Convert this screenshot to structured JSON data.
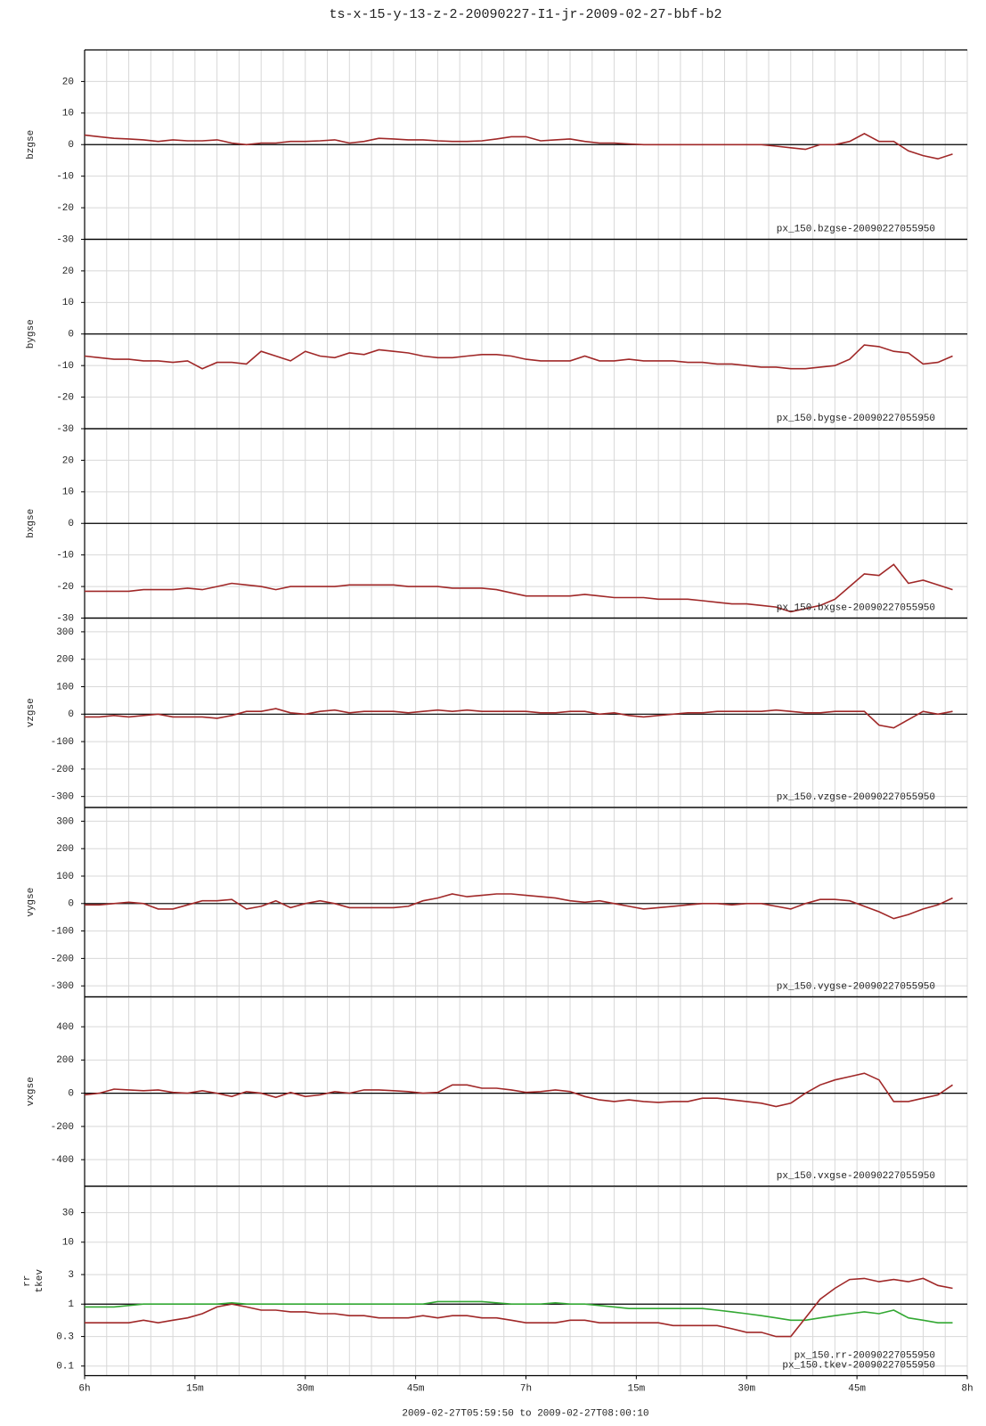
{
  "title": "ts-x-15-y-13-z-2-20090227-I1-jr-2009-02-27-bbf-b2",
  "x_grid": [
    0,
    3,
    6,
    9,
    12,
    15,
    18,
    21,
    24,
    27,
    30,
    33,
    36,
    39,
    42,
    45,
    48,
    51,
    54,
    57,
    60,
    63,
    66,
    69,
    72,
    75,
    78,
    81,
    84,
    87,
    90,
    93,
    96,
    99,
    102,
    105,
    108,
    111,
    114,
    117,
    120
  ],
  "chart_data": [
    {
      "type": "line",
      "ylabel": "bzgse",
      "xlim": [
        0,
        120
      ],
      "ylim": [
        -30,
        30
      ],
      "yticks": [
        -30,
        -20,
        -10,
        0,
        10,
        20
      ],
      "grid": true,
      "reference_line": 0,
      "x": [
        0,
        2,
        4,
        6,
        8,
        10,
        12,
        14,
        16,
        18,
        20,
        22,
        24,
        26,
        28,
        30,
        32,
        34,
        36,
        38,
        40,
        42,
        44,
        46,
        48,
        50,
        52,
        54,
        56,
        58,
        60,
        62,
        64,
        66,
        68,
        70,
        72,
        74,
        76,
        78,
        80,
        82,
        84,
        86,
        88,
        90,
        92,
        94,
        96,
        98,
        100,
        102,
        104,
        106,
        108,
        110,
        112,
        114,
        116,
        118
      ],
      "series": [
        {
          "name": "px_150.bzgse-20090227055950",
          "color": "#a02828",
          "values": [
            3,
            2.5,
            2,
            1.8,
            1.5,
            1,
            1.5,
            1.2,
            1.2,
            1.5,
            0.5,
            0,
            0.5,
            0.5,
            1,
            1,
            1.2,
            1.5,
            0.5,
            1,
            2,
            1.8,
            1.5,
            1.5,
            1.2,
            1,
            1,
            1.2,
            1.8,
            2.5,
            2.5,
            1.2,
            1.5,
            1.8,
            1,
            0.5,
            0.5,
            0.2,
            0,
            0,
            0,
            0,
            0,
            0,
            0,
            0,
            0,
            -0.5,
            -1,
            -1.5,
            0,
            0,
            1,
            3.5,
            1,
            1,
            -2,
            -3.5,
            -4.5,
            -3
          ]
        }
      ]
    },
    {
      "type": "line",
      "ylabel": "bygse",
      "xlim": [
        0,
        120
      ],
      "ylim": [
        -30,
        30
      ],
      "yticks": [
        -30,
        -20,
        -10,
        0,
        10,
        20
      ],
      "grid": true,
      "reference_line": 0,
      "x": [
        0,
        2,
        4,
        6,
        8,
        10,
        12,
        14,
        16,
        18,
        20,
        22,
        24,
        26,
        28,
        30,
        32,
        34,
        36,
        38,
        40,
        42,
        44,
        46,
        48,
        50,
        52,
        54,
        56,
        58,
        60,
        62,
        64,
        66,
        68,
        70,
        72,
        74,
        76,
        78,
        80,
        82,
        84,
        86,
        88,
        90,
        92,
        94,
        96,
        98,
        100,
        102,
        104,
        106,
        108,
        110,
        112,
        114,
        116,
        118
      ],
      "series": [
        {
          "name": "px_150.bygse-20090227055950",
          "color": "#a02828",
          "values": [
            -7,
            -7.5,
            -8,
            -8,
            -8.5,
            -8.5,
            -9,
            -8.5,
            -11,
            -9,
            -9,
            -9.5,
            -5.5,
            -7,
            -8.5,
            -5.5,
            -7,
            -7.5,
            -6,
            -6.5,
            -5,
            -5.5,
            -6,
            -7,
            -7.5,
            -7.5,
            -7,
            -6.5,
            -6.5,
            -7,
            -8,
            -8.5,
            -8.5,
            -8.5,
            -7,
            -8.5,
            -8.5,
            -8,
            -8.5,
            -8.5,
            -8.5,
            -9,
            -9,
            -9.5,
            -9.5,
            -10,
            -10.5,
            -10.5,
            -11,
            -11,
            -10.5,
            -10,
            -8,
            -3.5,
            -4,
            -5.5,
            -6,
            -9.5,
            -9,
            -7
          ]
        }
      ]
    },
    {
      "type": "line",
      "ylabel": "bxgse",
      "xlim": [
        0,
        120
      ],
      "ylim": [
        -30,
        30
      ],
      "yticks": [
        -30,
        -20,
        -10,
        0,
        10,
        20
      ],
      "grid": true,
      "reference_line": 0,
      "x": [
        0,
        2,
        4,
        6,
        8,
        10,
        12,
        14,
        16,
        18,
        20,
        22,
        24,
        26,
        28,
        30,
        32,
        34,
        36,
        38,
        40,
        42,
        44,
        46,
        48,
        50,
        52,
        54,
        56,
        58,
        60,
        62,
        64,
        66,
        68,
        70,
        72,
        74,
        76,
        78,
        80,
        82,
        84,
        86,
        88,
        90,
        92,
        94,
        96,
        98,
        100,
        102,
        104,
        106,
        108,
        110,
        112,
        114,
        116,
        118
      ],
      "series": [
        {
          "name": "px_150.bxgse-20090227055950",
          "color": "#a02828",
          "values": [
            -21.5,
            -21.5,
            -21.5,
            -21.5,
            -21,
            -21,
            -21,
            -20.5,
            -21,
            -20,
            -19,
            -19.5,
            -20,
            -21,
            -20,
            -20,
            -20,
            -20,
            -19.5,
            -19.5,
            -19.5,
            -19.5,
            -20,
            -20,
            -20,
            -20.5,
            -20.5,
            -20.5,
            -21,
            -22,
            -23,
            -23,
            -23,
            -23,
            -22.5,
            -23,
            -23.5,
            -23.5,
            -23.5,
            -24,
            -24,
            -24,
            -24.5,
            -25,
            -25.5,
            -25.5,
            -26,
            -26.5,
            -28,
            -27,
            -26,
            -24,
            -20,
            -16,
            -16.5,
            -13,
            -19,
            -18,
            -19.5,
            -21
          ]
        }
      ]
    },
    {
      "type": "line",
      "ylabel": "vzgse",
      "xlim": [
        0,
        120
      ],
      "ylim": [
        -340,
        350
      ],
      "yticks": [
        -300,
        -200,
        -100,
        0,
        100,
        200,
        300
      ],
      "grid": true,
      "reference_line": 0,
      "x": [
        0,
        2,
        4,
        6,
        8,
        10,
        12,
        14,
        16,
        18,
        20,
        22,
        24,
        26,
        28,
        30,
        32,
        34,
        36,
        38,
        40,
        42,
        44,
        46,
        48,
        50,
        52,
        54,
        56,
        58,
        60,
        62,
        64,
        66,
        68,
        70,
        72,
        74,
        76,
        78,
        80,
        82,
        84,
        86,
        88,
        90,
        92,
        94,
        96,
        98,
        100,
        102,
        104,
        106,
        108,
        110,
        112,
        114,
        116,
        118
      ],
      "series": [
        {
          "name": "px_150.vzgse-20090227055950",
          "color": "#a02828",
          "values": [
            -10,
            -10,
            -5,
            -10,
            -5,
            0,
            -10,
            -10,
            -10,
            -15,
            -5,
            10,
            10,
            20,
            5,
            0,
            10,
            15,
            5,
            10,
            10,
            10,
            5,
            10,
            15,
            10,
            15,
            10,
            10,
            10,
            10,
            5,
            5,
            10,
            10,
            0,
            5,
            -5,
            -10,
            -5,
            0,
            5,
            5,
            10,
            10,
            10,
            10,
            15,
            10,
            5,
            5,
            10,
            10,
            10,
            -40,
            -50,
            -20,
            10,
            0,
            10
          ]
        }
      ]
    },
    {
      "type": "line",
      "ylabel": "vygse",
      "xlim": [
        0,
        120
      ],
      "ylim": [
        -340,
        350
      ],
      "yticks": [
        -300,
        -200,
        -100,
        0,
        100,
        200,
        300
      ],
      "grid": true,
      "reference_line": 0,
      "x": [
        0,
        2,
        4,
        6,
        8,
        10,
        12,
        14,
        16,
        18,
        20,
        22,
        24,
        26,
        28,
        30,
        32,
        34,
        36,
        38,
        40,
        42,
        44,
        46,
        48,
        50,
        52,
        54,
        56,
        58,
        60,
        62,
        64,
        66,
        68,
        70,
        72,
        74,
        76,
        78,
        80,
        82,
        84,
        86,
        88,
        90,
        92,
        94,
        96,
        98,
        100,
        102,
        104,
        106,
        108,
        110,
        112,
        114,
        116,
        118
      ],
      "series": [
        {
          "name": "px_150.vygse-20090227055950",
          "color": "#a02828",
          "values": [
            -5,
            -5,
            0,
            5,
            0,
            -20,
            -20,
            -5,
            10,
            10,
            15,
            -20,
            -10,
            10,
            -15,
            0,
            10,
            0,
            -15,
            -15,
            -15,
            -15,
            -10,
            10,
            20,
            35,
            25,
            30,
            35,
            35,
            30,
            25,
            20,
            10,
            5,
            10,
            0,
            -10,
            -20,
            -15,
            -10,
            -5,
            0,
            0,
            -5,
            0,
            0,
            -10,
            -20,
            0,
            15,
            15,
            10,
            -10,
            -30,
            -55,
            -40,
            -20,
            -5,
            20
          ]
        }
      ]
    },
    {
      "type": "line",
      "ylabel": "vxgse",
      "xlim": [
        0,
        120
      ],
      "ylim": [
        -560,
        580
      ],
      "yticks": [
        -400,
        -200,
        0,
        200,
        400
      ],
      "grid": true,
      "reference_line": 0,
      "x": [
        0,
        2,
        4,
        6,
        8,
        10,
        12,
        14,
        16,
        18,
        20,
        22,
        24,
        26,
        28,
        30,
        32,
        34,
        36,
        38,
        40,
        42,
        44,
        46,
        48,
        50,
        52,
        54,
        56,
        58,
        60,
        62,
        64,
        66,
        68,
        70,
        72,
        74,
        76,
        78,
        80,
        82,
        84,
        86,
        88,
        90,
        92,
        94,
        96,
        98,
        100,
        102,
        104,
        106,
        108,
        110,
        112,
        114,
        116,
        118
      ],
      "series": [
        {
          "name": "px_150.vxgse-20090227055950",
          "color": "#a02828",
          "values": [
            -10,
            0,
            25,
            20,
            15,
            20,
            5,
            0,
            15,
            0,
            -20,
            10,
            0,
            -25,
            5,
            -20,
            -10,
            10,
            0,
            20,
            20,
            15,
            10,
            0,
            5,
            50,
            50,
            30,
            30,
            20,
            5,
            10,
            20,
            10,
            -20,
            -40,
            -50,
            -40,
            -50,
            -55,
            -50,
            -50,
            -30,
            -30,
            -40,
            -50,
            -60,
            -80,
            -60,
            0,
            50,
            80,
            100,
            120,
            80,
            -50,
            -50,
            -30,
            -10,
            50
          ]
        }
      ]
    },
    {
      "type": "line",
      "ylabel": [
        "rr",
        "tkev"
      ],
      "xlabel": "2009-02-27T05:59:50 to 2009-02-27T08:00:10",
      "xlim": [
        0,
        120
      ],
      "xticks": [
        {
          "value": 0,
          "label": "6h"
        },
        {
          "value": 15,
          "label": "15m"
        },
        {
          "value": 30,
          "label": "30m"
        },
        {
          "value": 45,
          "label": "45m"
        },
        {
          "value": 60,
          "label": "7h"
        },
        {
          "value": 75,
          "label": "15m"
        },
        {
          "value": 90,
          "label": "30m"
        },
        {
          "value": 105,
          "label": "45m"
        },
        {
          "value": 120,
          "label": "8h"
        }
      ],
      "ylim": [
        0.07,
        80
      ],
      "log_scale": true,
      "yticks": [
        0.1,
        0.3,
        1,
        3,
        10,
        30
      ],
      "grid": true,
      "reference_line": 1,
      "x": [
        0,
        2,
        4,
        6,
        8,
        10,
        12,
        14,
        16,
        18,
        20,
        22,
        24,
        26,
        28,
        30,
        32,
        34,
        36,
        38,
        40,
        42,
        44,
        46,
        48,
        50,
        52,
        54,
        56,
        58,
        60,
        62,
        64,
        66,
        68,
        70,
        72,
        74,
        76,
        78,
        80,
        82,
        84,
        86,
        88,
        90,
        92,
        94,
        96,
        98,
        100,
        102,
        104,
        106,
        108,
        110,
        112,
        114,
        116,
        118
      ],
      "series": [
        {
          "name": "px_150.rr-20090227055950",
          "color": "#33a833",
          "values": [
            0.9,
            0.9,
            0.9,
            0.95,
            1,
            1,
            1,
            1,
            1,
            1,
            1.05,
            1,
            1,
            1,
            1,
            1,
            1,
            1,
            1,
            1,
            1,
            1,
            1,
            1,
            1.1,
            1.1,
            1.1,
            1.1,
            1.05,
            1,
            1,
            1,
            1.05,
            1,
            1,
            0.95,
            0.9,
            0.85,
            0.85,
            0.85,
            0.85,
            0.85,
            0.85,
            0.8,
            0.75,
            0.7,
            0.65,
            0.6,
            0.55,
            0.55,
            0.6,
            0.65,
            0.7,
            0.75,
            0.7,
            0.8,
            0.6,
            0.55,
            0.5,
            0.5
          ]
        },
        {
          "name": "px_150.tkev-20090227055950",
          "color": "#a02828",
          "values": [
            0.5,
            0.5,
            0.5,
            0.5,
            0.55,
            0.5,
            0.55,
            0.6,
            0.7,
            0.9,
            1,
            0.9,
            0.8,
            0.8,
            0.75,
            0.75,
            0.7,
            0.7,
            0.65,
            0.65,
            0.6,
            0.6,
            0.6,
            0.65,
            0.6,
            0.65,
            0.65,
            0.6,
            0.6,
            0.55,
            0.5,
            0.5,
            0.5,
            0.55,
            0.55,
            0.5,
            0.5,
            0.5,
            0.5,
            0.5,
            0.45,
            0.45,
            0.45,
            0.45,
            0.4,
            0.35,
            0.35,
            0.3,
            0.3,
            0.6,
            1.2,
            1.8,
            2.5,
            2.6,
            2.3,
            2.5,
            2.3,
            2.6,
            2,
            1.8
          ]
        }
      ]
    }
  ]
}
